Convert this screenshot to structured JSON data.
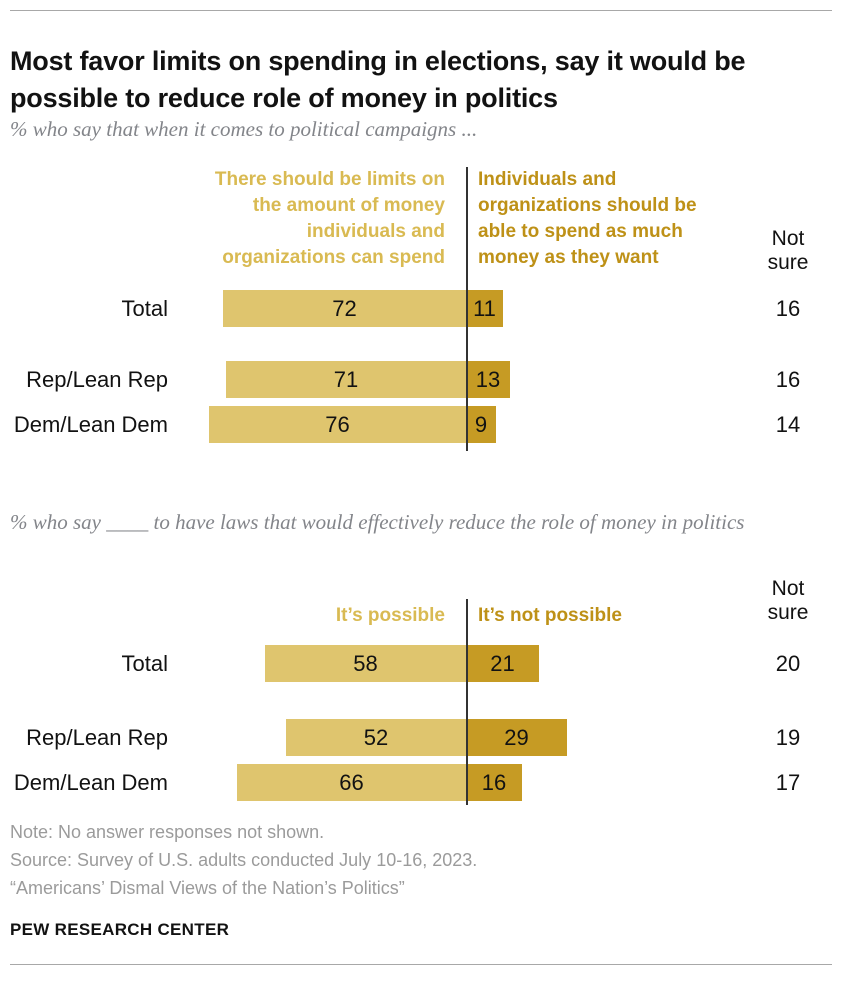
{
  "header": {
    "title": "Most favor limits on spending in elections, say it would be possible to reduce role of money in politics",
    "subtitle1": "% who say that when it comes to political campaigns ...",
    "subtitle2": "% who say ____ to have laws that would effectively reduce the role of money in politics"
  },
  "colors": {
    "bar_light": "#DFC56E",
    "bar_dark": "#C69B24",
    "legend_light_text": "#D9BA52",
    "legend_dark_text": "#BE9117",
    "ink": "#121212",
    "footer_gray": "#9B9B9B",
    "subtitle_gray": "#83858A",
    "rule_gray": "#A8A8A8",
    "axis": "#333333"
  },
  "chart_data": [
    {
      "type": "bar",
      "orientation": "horizontal-diverging",
      "legend_left": "There should be limits on the amount of money individuals and organizations can spend",
      "legend_right": "Individuals and organizations should be able to spend as much money as they want",
      "not_sure_label": "Not sure",
      "categories": [
        "Total",
        "Rep/Lean Rep",
        "Dem/Lean Dem"
      ],
      "series": [
        {
          "name": "There should be limits on the amount of money individuals and organizations can spend",
          "values": [
            72,
            71,
            76
          ]
        },
        {
          "name": "Individuals and organizations should be able to spend as much money as they want",
          "values": [
            11,
            13,
            9
          ]
        },
        {
          "name": "Not sure",
          "values": [
            16,
            16,
            14
          ]
        }
      ],
      "xlim": [
        0,
        100
      ],
      "grid": false,
      "value_labels": true
    },
    {
      "type": "bar",
      "orientation": "horizontal-diverging",
      "legend_left": "It’s possible",
      "legend_right": "It’s not possible",
      "not_sure_label": "Not sure",
      "categories": [
        "Total",
        "Rep/Lean Rep",
        "Dem/Lean Dem"
      ],
      "series": [
        {
          "name": "It’s possible",
          "values": [
            58,
            52,
            66
          ]
        },
        {
          "name": "It’s not possible",
          "values": [
            21,
            29,
            16
          ]
        },
        {
          "name": "Not sure",
          "values": [
            20,
            19,
            17
          ]
        }
      ],
      "xlim": [
        0,
        100
      ],
      "grid": false,
      "value_labels": true
    }
  ],
  "footer": {
    "note": "Note: No answer responses not shown.",
    "source": "Source: Survey of U.S. adults conducted July 10-16, 2023.",
    "report": "“Americans’ Dismal Views of the Nation’s Politics”",
    "brand": "PEW RESEARCH CENTER"
  }
}
